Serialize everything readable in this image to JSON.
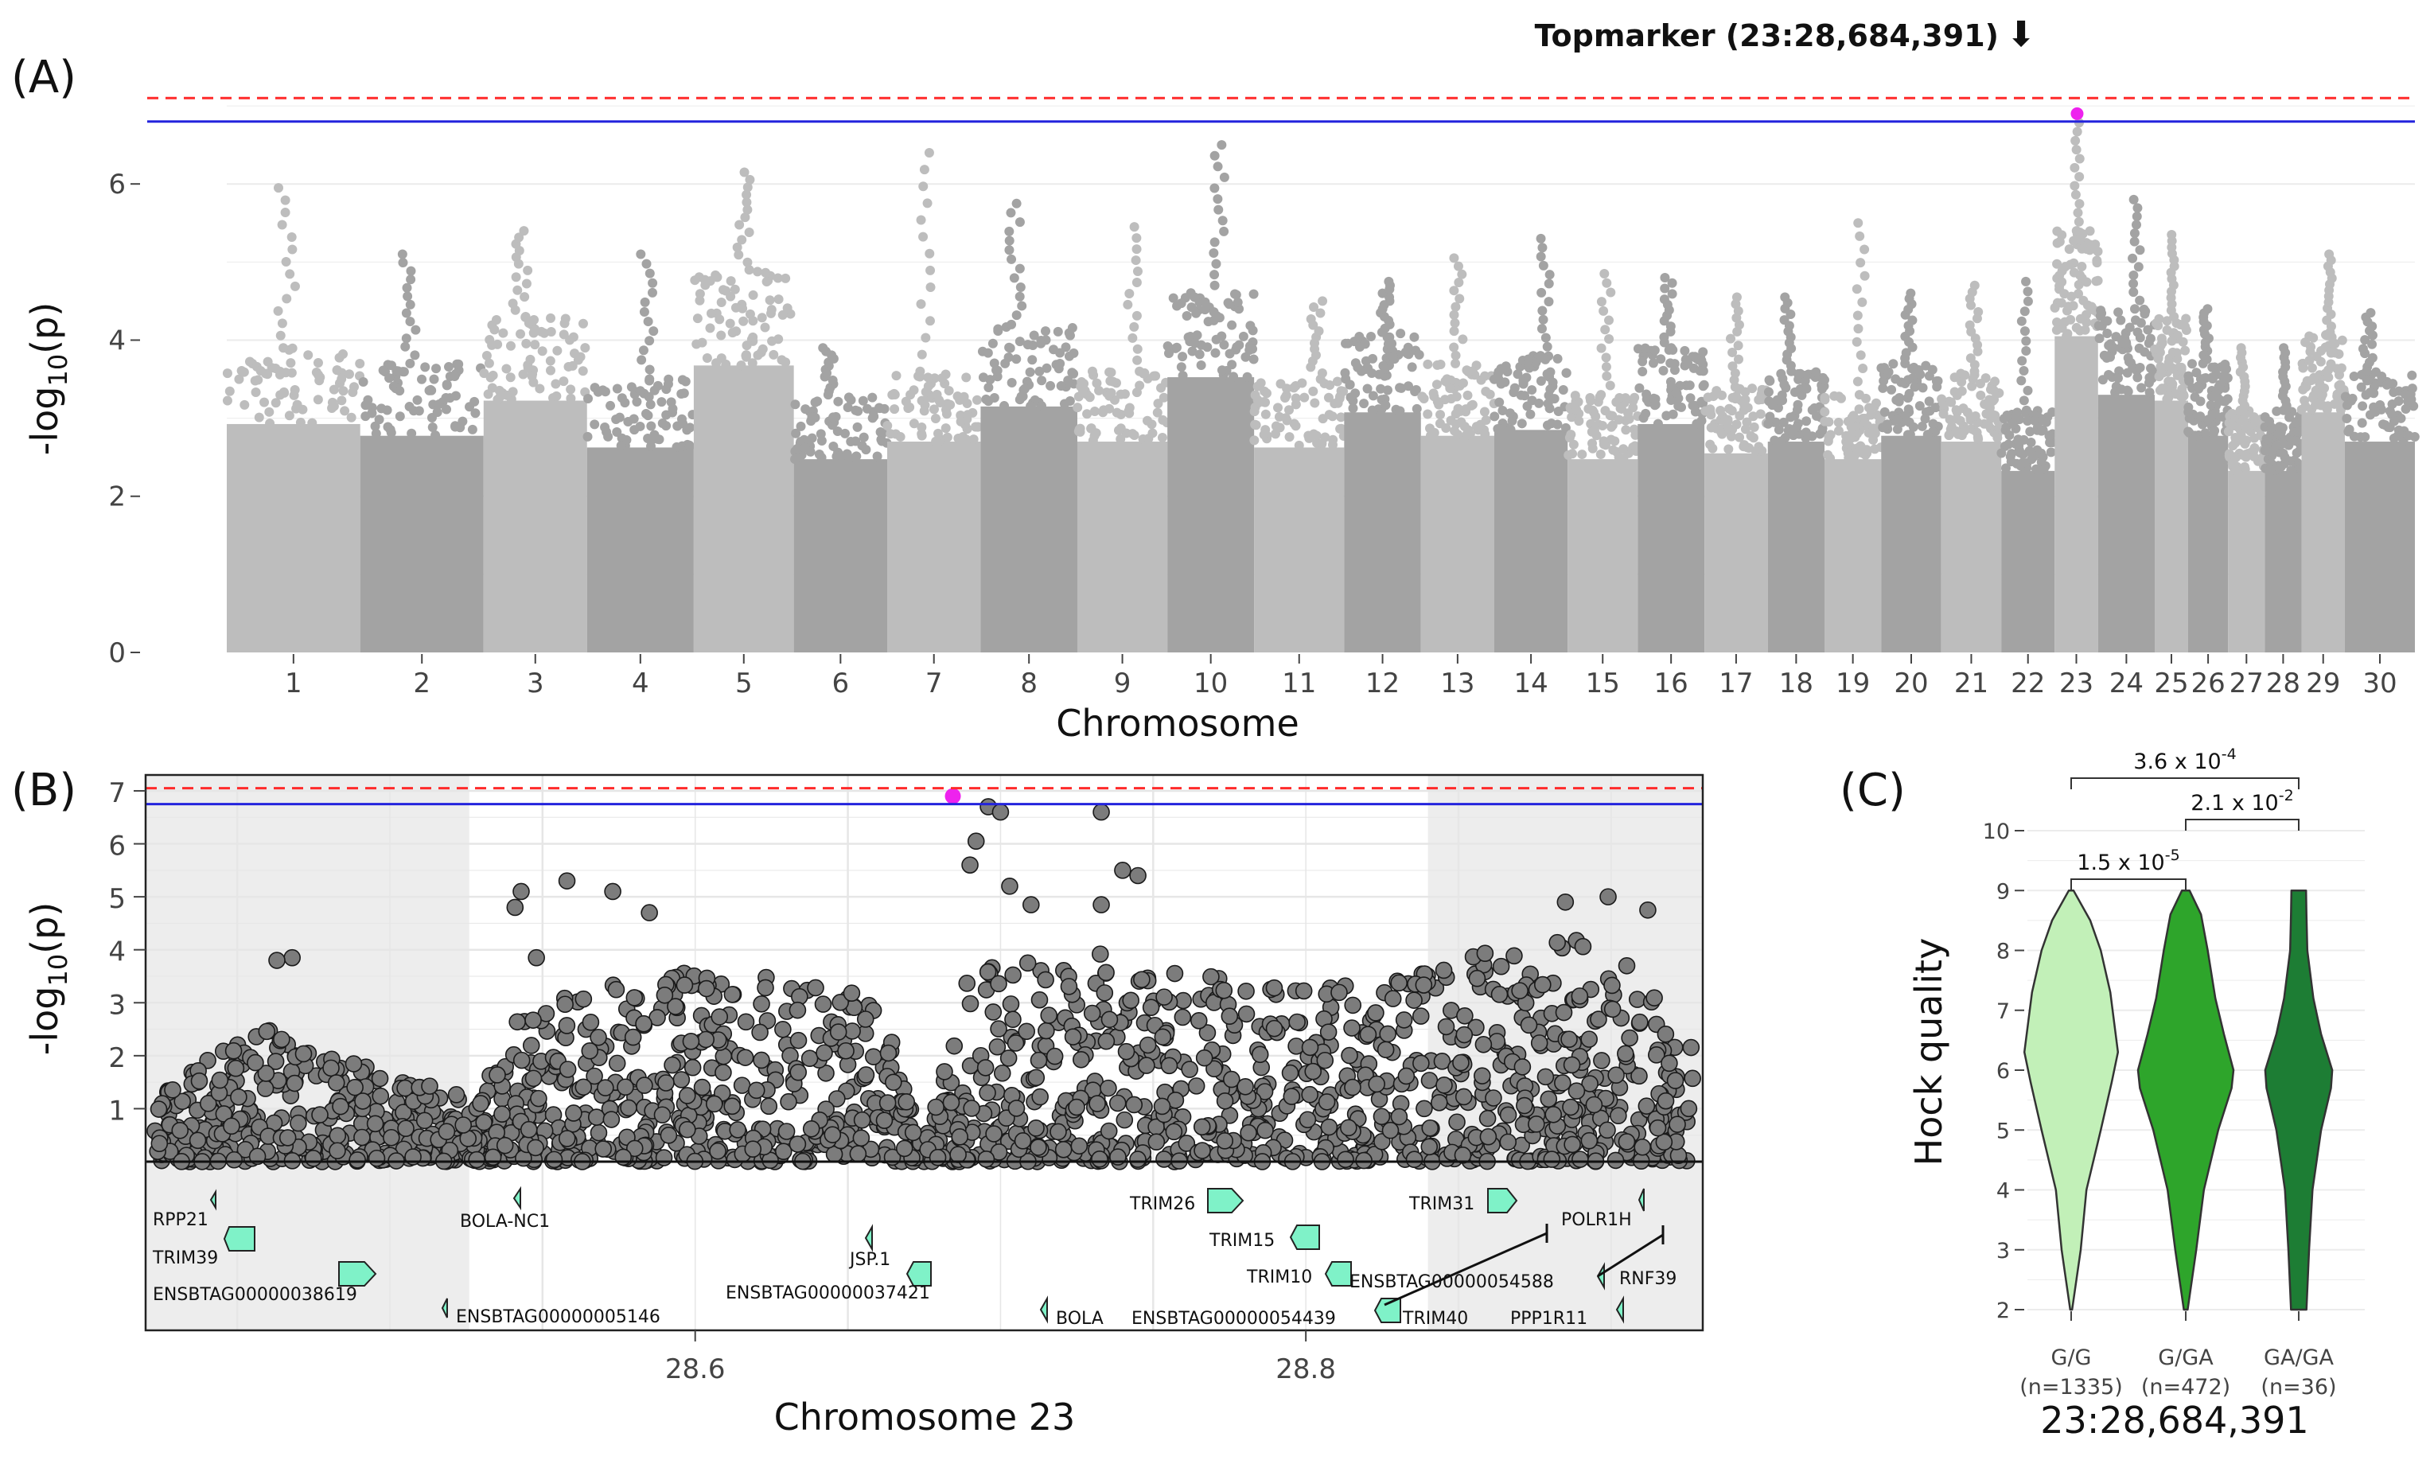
{
  "chart_data": [
    {
      "panel": "(A)",
      "type": "scatter",
      "subtype": "manhattan",
      "xlabel": "Chromosome",
      "ylabel_main": "-log",
      "ylabel_sub": "10",
      "ylabel_arg": "(p)",
      "ylim": [
        0,
        7.5
      ],
      "yticks": [
        "0",
        "2",
        "4",
        "6"
      ],
      "threshold_red": 7.1,
      "threshold_blue": 6.8,
      "annotation": "Topmarker (23:28,684,391)",
      "arrow": "⬇",
      "top_marker": {
        "chromosome": "23",
        "value": 6.9
      },
      "chromosome_labels": [
        "1",
        "2",
        "3",
        "4",
        "5",
        "6",
        "7",
        "8",
        "9",
        "10",
        "11",
        "12",
        "13",
        "14",
        "15",
        "16",
        "17",
        "18",
        "19",
        "20",
        "21",
        "22",
        "23",
        "24",
        "25",
        "26",
        "27",
        "28",
        "29",
        "30"
      ],
      "chromosomes": [
        {
          "chr": "1",
          "max": 5.95,
          "typ": 3.9
        },
        {
          "chr": "2",
          "max": 5.1,
          "typ": 3.7
        },
        {
          "chr": "3",
          "max": 5.4,
          "typ": 4.3
        },
        {
          "chr": "4",
          "max": 5.1,
          "typ": 3.5
        },
        {
          "chr": "5",
          "max": 6.15,
          "typ": 4.9
        },
        {
          "chr": "6",
          "max": 3.9,
          "typ": 3.3
        },
        {
          "chr": "7",
          "max": 6.4,
          "typ": 3.6
        },
        {
          "chr": "8",
          "max": 5.75,
          "typ": 4.2
        },
        {
          "chr": "9",
          "max": 5.45,
          "typ": 3.6
        },
        {
          "chr": "10",
          "max": 6.5,
          "typ": 4.7
        },
        {
          "chr": "11",
          "max": 4.5,
          "typ": 3.5
        },
        {
          "chr": "12",
          "max": 4.75,
          "typ": 4.1
        },
        {
          "chr": "13",
          "max": 5.05,
          "typ": 3.7
        },
        {
          "chr": "14",
          "max": 5.3,
          "typ": 3.8
        },
        {
          "chr": "15",
          "max": 4.85,
          "typ": 3.3
        },
        {
          "chr": "16",
          "max": 4.8,
          "typ": 3.9
        },
        {
          "chr": "17",
          "max": 4.55,
          "typ": 3.4
        },
        {
          "chr": "18",
          "max": 4.55,
          "typ": 3.6
        },
        {
          "chr": "19",
          "max": 5.5,
          "typ": 3.3
        },
        {
          "chr": "20",
          "max": 4.6,
          "typ": 3.7
        },
        {
          "chr": "21",
          "max": 4.7,
          "typ": 3.6
        },
        {
          "chr": "22",
          "max": 4.75,
          "typ": 3.1
        },
        {
          "chr": "23",
          "max": 6.9,
          "typ": 5.4
        },
        {
          "chr": "24",
          "max": 5.8,
          "typ": 4.4
        },
        {
          "chr": "25",
          "max": 5.35,
          "typ": 4.3
        },
        {
          "chr": "26",
          "max": 4.4,
          "typ": 3.7
        },
        {
          "chr": "27",
          "max": 3.9,
          "typ": 3.1
        },
        {
          "chr": "28",
          "max": 3.9,
          "typ": 3.1
        },
        {
          "chr": "29",
          "max": 5.1,
          "typ": 4.1
        },
        {
          "chr": "30",
          "max": 4.35,
          "typ": 3.6
        }
      ]
    },
    {
      "panel": "(B)",
      "type": "scatter",
      "subtype": "regional",
      "xlabel": "Chromosome 23",
      "ylabel_main": "-log",
      "ylabel_sub": "10",
      "ylabel_arg": "(p)",
      "xlim": [
        28.42,
        28.93
      ],
      "ylim": [
        0,
        7.3
      ],
      "xticks": [
        "28.6",
        "28.8"
      ],
      "yticks": [
        "1",
        "2",
        "3",
        "4",
        "5",
        "6",
        "7"
      ],
      "threshold_red": 7.05,
      "threshold_blue": 6.75,
      "shaded_regions": [
        [
          28.42,
          28.526
        ],
        [
          28.84,
          28.93
        ]
      ],
      "top_marker": {
        "position": 28.684391,
        "value": 6.9
      },
      "notable_points": [
        {
          "x": 28.543,
          "y": 5.1
        },
        {
          "x": 28.541,
          "y": 4.8
        },
        {
          "x": 28.548,
          "y": 3.85
        },
        {
          "x": 28.558,
          "y": 5.3
        },
        {
          "x": 28.573,
          "y": 5.1
        },
        {
          "x": 28.585,
          "y": 4.7
        },
        {
          "x": 28.696,
          "y": 6.7
        },
        {
          "x": 28.7,
          "y": 6.6
        },
        {
          "x": 28.692,
          "y": 6.05
        },
        {
          "x": 28.69,
          "y": 5.6
        },
        {
          "x": 28.703,
          "y": 5.2
        },
        {
          "x": 28.733,
          "y": 6.6
        },
        {
          "x": 28.74,
          "y": 5.5
        },
        {
          "x": 28.745,
          "y": 5.4
        },
        {
          "x": 28.71,
          "y": 4.85
        },
        {
          "x": 28.733,
          "y": 4.85
        },
        {
          "x": 28.468,
          "y": 3.85
        },
        {
          "x": 28.463,
          "y": 3.8
        },
        {
          "x": 28.899,
          "y": 5.0
        },
        {
          "x": 28.912,
          "y": 4.75
        },
        {
          "x": 28.885,
          "y": 4.9
        }
      ],
      "genes": [
        {
          "name": "RPP21"
        },
        {
          "name": "TRIM39"
        },
        {
          "name": "ENSBTAG00000038619"
        },
        {
          "name": "BOLA-NC1"
        },
        {
          "name": "ENSBTAG00000005146"
        },
        {
          "name": "JSP.1"
        },
        {
          "name": "ENSBTAG00000037421"
        },
        {
          "name": "BOLA"
        },
        {
          "name": "TRIM26"
        },
        {
          "name": "TRIM15"
        },
        {
          "name": "TRIM10"
        },
        {
          "name": "ENSBTAG00000054439"
        },
        {
          "name": "TRIM40"
        },
        {
          "name": "TRIM31"
        },
        {
          "name": "ENSBTAG00000054588"
        },
        {
          "name": "POLR1H"
        },
        {
          "name": "RNF39"
        },
        {
          "name": "PPP1R11"
        }
      ]
    },
    {
      "panel": "(C)",
      "type": "violin",
      "xlabel": "23:28,684,391",
      "ylabel": "Hock quality",
      "ylim": [
        2,
        10
      ],
      "yticks": [
        "2",
        "3",
        "4",
        "5",
        "6",
        "7",
        "8",
        "9",
        "10"
      ],
      "groups": [
        {
          "label": "G/G",
          "n": "(n=1335)",
          "color": "#c2f0b8",
          "min": 2,
          "max": 9,
          "median": 6.3
        },
        {
          "label": "G/GA",
          "n": "(n=472)",
          "color": "#2ea52b",
          "min": 2,
          "max": 9,
          "median": 6.0
        },
        {
          "label": "GA/GA",
          "n": "(n=36)",
          "color": "#1d7d34",
          "min": 2,
          "max": 9,
          "median": 5.8
        }
      ],
      "comparisons": [
        {
          "from": "G/G",
          "to": "GA/GA",
          "base": "3.6 x 10",
          "exp": "-4"
        },
        {
          "from": "G/GA",
          "to": "GA/GA",
          "base": "2.1 x 10",
          "exp": "-2"
        },
        {
          "from": "G/G",
          "to": "G/GA",
          "base": "1.5 x 10",
          "exp": "-5"
        }
      ]
    }
  ]
}
